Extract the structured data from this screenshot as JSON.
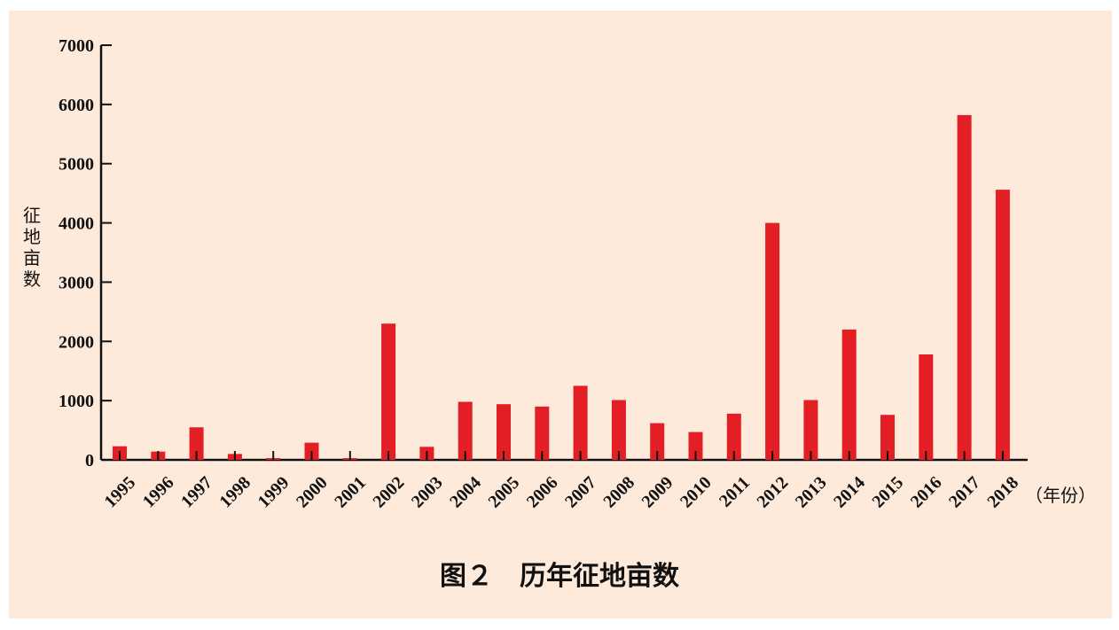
{
  "chart_data": {
    "type": "bar",
    "title": "图２　历年征地亩数",
    "ylabel": "征地亩数",
    "xlabel": "（年份）",
    "ylim": [
      0,
      7000
    ],
    "yticks": [
      0,
      1000,
      2000,
      3000,
      4000,
      5000,
      6000,
      7000
    ],
    "categories": [
      "1995",
      "1996",
      "1997",
      "1998",
      "1999",
      "2000",
      "2001",
      "2002",
      "2003",
      "2004",
      "2005",
      "2006",
      "2007",
      "2008",
      "2009",
      "2010",
      "2011",
      "2012",
      "2013",
      "2014",
      "2015",
      "2016",
      "2017",
      "2018"
    ],
    "values": [
      230,
      140,
      550,
      100,
      30,
      290,
      30,
      2300,
      220,
      980,
      940,
      900,
      1250,
      1010,
      620,
      470,
      780,
      4000,
      1010,
      2200,
      760,
      1780,
      5820,
      4560
    ],
    "grid": false,
    "bar_color": "#e31e24"
  },
  "colors": {
    "background": "#fdeadb",
    "bar": "#e31e24",
    "axis": "#111111"
  }
}
